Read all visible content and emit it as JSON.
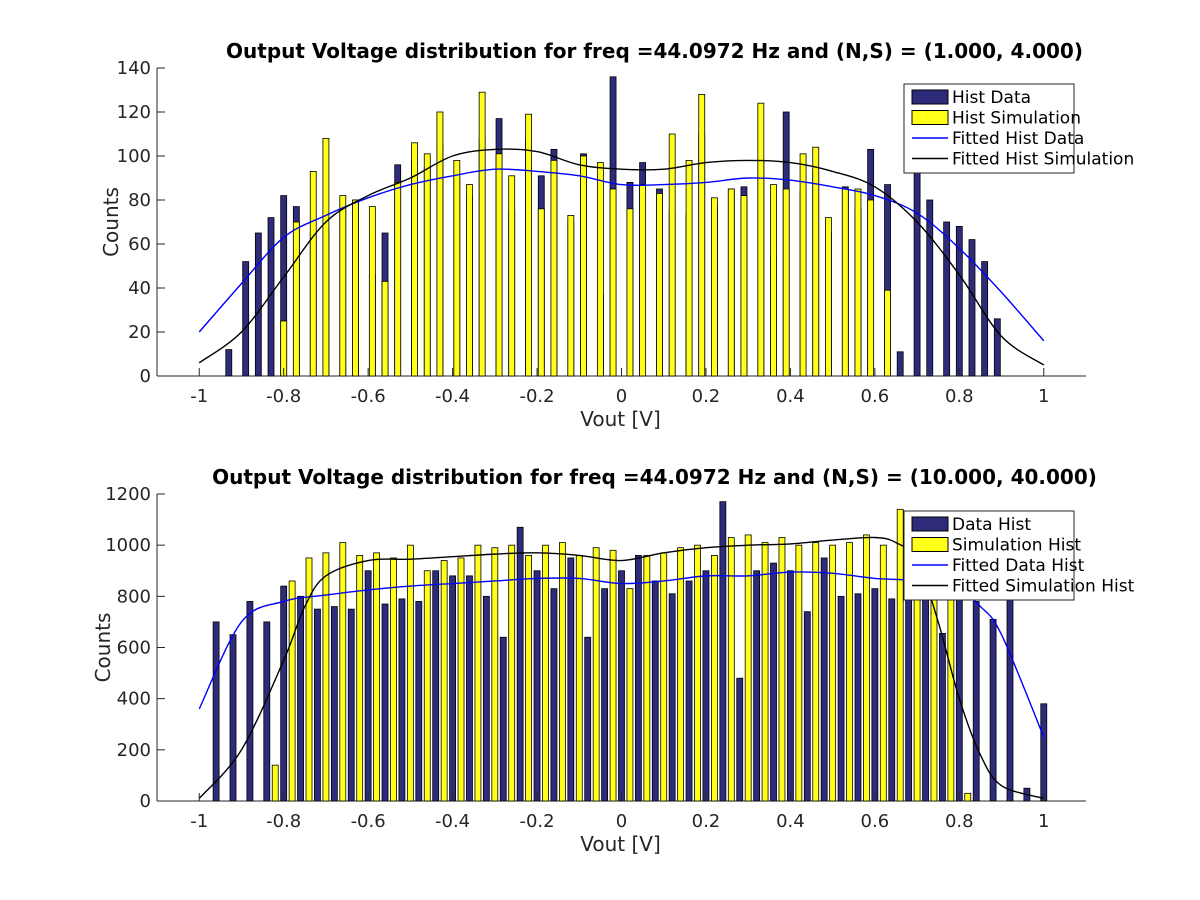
{
  "chart_data": [
    {
      "type": "bar",
      "title": "Output Voltage distribution for freq =44.0972 Hz and (N,S) = (1.000, 4.000)",
      "xlabel": "Vout [V]",
      "ylabel": "Counts",
      "xlim": [
        -1.1,
        1.1
      ],
      "ylim": [
        0,
        140
      ],
      "xticks": [
        "-1",
        "-0.8",
        "-0.6",
        "-0.4",
        "-0.2",
        "0",
        "0.2",
        "0.4",
        "0.6",
        "0.8",
        "1"
      ],
      "yticks": [
        "0",
        "20",
        "40",
        "60",
        "80",
        "100",
        "120",
        "140"
      ],
      "legend_position": "top-right",
      "grid": false,
      "bar_series": [
        {
          "name": "Hist Data",
          "color": "#2e2c7a",
          "x": [
            -0.93,
            -0.89,
            -0.86,
            -0.83,
            -0.8,
            -0.77,
            -0.73,
            -0.7,
            -0.66,
            -0.63,
            -0.59,
            -0.56,
            -0.53,
            -0.49,
            -0.46,
            -0.43,
            -0.39,
            -0.36,
            -0.33,
            -0.29,
            -0.26,
            -0.22,
            -0.19,
            -0.16,
            -0.12,
            -0.09,
            -0.05,
            -0.02,
            0.02,
            0.05,
            0.09,
            0.12,
            0.16,
            0.19,
            0.22,
            0.26,
            0.29,
            0.33,
            0.36,
            0.39,
            0.43,
            0.46,
            0.49,
            0.53,
            0.56,
            0.59,
            0.63,
            0.66,
            0.7,
            0.73,
            0.77,
            0.8,
            0.83,
            0.86,
            0.89,
            0.93
          ],
          "values": [
            12,
            52,
            65,
            72,
            82,
            77,
            65,
            67,
            77,
            80,
            46,
            65,
            96,
            98,
            95,
            105,
            90,
            82,
            108,
            117,
            75,
            107,
            91,
            103,
            70,
            101,
            37,
            136,
            88,
            97,
            85,
            75,
            74,
            110,
            77,
            85,
            86,
            98,
            55,
            120,
            84,
            93,
            65,
            86,
            76,
            103,
            87,
            11,
            93,
            80,
            70,
            68,
            62,
            52,
            26,
            0
          ]
        },
        {
          "name": "Hist Simulation",
          "color": "#ffff1a",
          "x": [
            -0.8,
            -0.77,
            -0.73,
            -0.7,
            -0.66,
            -0.63,
            -0.59,
            -0.56,
            -0.53,
            -0.49,
            -0.46,
            -0.43,
            -0.39,
            -0.36,
            -0.33,
            -0.29,
            -0.26,
            -0.22,
            -0.19,
            -0.16,
            -0.12,
            -0.09,
            -0.05,
            -0.02,
            0.02,
            0.05,
            0.09,
            0.12,
            0.16,
            0.19,
            0.22,
            0.26,
            0.29,
            0.33,
            0.36,
            0.39,
            0.43,
            0.46,
            0.49,
            0.53,
            0.56,
            0.59,
            0.63,
            0.66,
            0.7,
            0.73,
            0.77,
            0.8
          ],
          "values": [
            25,
            70,
            93,
            108,
            82,
            80,
            77,
            43,
            88,
            106,
            101,
            120,
            98,
            87,
            129,
            101,
            91,
            119,
            76,
            98,
            73,
            100,
            97,
            85,
            76,
            87,
            83,
            110,
            98,
            128,
            81,
            85,
            82,
            124,
            87,
            85,
            101,
            104,
            72,
            85,
            85,
            80,
            39,
            0,
            0,
            0,
            0,
            0
          ]
        }
      ],
      "line_series": [
        {
          "name": "Fitted Hist Data",
          "color": "#0000ff",
          "x": [
            -1.0,
            -0.9,
            -0.8,
            -0.7,
            -0.6,
            -0.5,
            -0.4,
            -0.3,
            -0.2,
            -0.1,
            0.0,
            0.1,
            0.2,
            0.3,
            0.4,
            0.5,
            0.6,
            0.7,
            0.8,
            0.9,
            1.0
          ],
          "values": [
            20,
            42,
            63,
            73,
            81,
            87,
            91,
            94,
            93,
            91,
            87,
            87,
            88,
            90,
            89,
            86,
            82,
            74,
            58,
            38,
            16
          ]
        },
        {
          "name": "Fitted Hist Simulation",
          "color": "#000000",
          "x": [
            -1.0,
            -0.9,
            -0.8,
            -0.7,
            -0.6,
            -0.5,
            -0.4,
            -0.3,
            -0.2,
            -0.1,
            0.0,
            0.1,
            0.2,
            0.3,
            0.4,
            0.5,
            0.6,
            0.7,
            0.8,
            0.9,
            1.0
          ],
          "values": [
            6,
            20,
            45,
            70,
            82,
            90,
            100,
            103,
            102,
            96,
            94,
            94,
            97,
            98,
            97,
            93,
            86,
            70,
            46,
            18,
            5
          ]
        }
      ]
    },
    {
      "type": "bar",
      "title": "Output Voltage distribution for freq =44.0972 Hz and (N,S) = (10.000, 40.000)",
      "xlabel": "Vout [V]",
      "ylabel": "Counts",
      "xlim": [
        -1.1,
        1.1
      ],
      "ylim": [
        0,
        1200
      ],
      "xticks": [
        "-1",
        "-0.8",
        "-0.6",
        "-0.4",
        "-0.2",
        "0",
        "0.2",
        "0.4",
        "0.6",
        "0.8",
        "1"
      ],
      "yticks": [
        "0",
        "200",
        "400",
        "600",
        "800",
        "1000",
        "1200"
      ],
      "legend_position": "top-right",
      "grid": false,
      "bar_series": [
        {
          "name": "Data Hist",
          "color": "#2e2c7a",
          "x": [
            -0.96,
            -0.92,
            -0.88,
            -0.84,
            -0.8,
            -0.76,
            -0.72,
            -0.68,
            -0.64,
            -0.6,
            -0.56,
            -0.52,
            -0.48,
            -0.44,
            -0.4,
            -0.36,
            -0.32,
            -0.28,
            -0.24,
            -0.2,
            -0.16,
            -0.12,
            -0.08,
            -0.04,
            0.0,
            0.04,
            0.08,
            0.12,
            0.16,
            0.2,
            0.24,
            0.28,
            0.32,
            0.36,
            0.4,
            0.44,
            0.48,
            0.52,
            0.56,
            0.6,
            0.64,
            0.68,
            0.72,
            0.76,
            0.8,
            0.84,
            0.88,
            0.92,
            0.96,
            1.0
          ],
          "values": [
            700,
            650,
            780,
            700,
            840,
            800,
            750,
            760,
            750,
            900,
            770,
            790,
            780,
            900,
            880,
            880,
            800,
            640,
            1070,
            900,
            830,
            950,
            640,
            830,
            900,
            960,
            860,
            810,
            860,
            900,
            1170,
            480,
            900,
            930,
            900,
            740,
            950,
            800,
            810,
            830,
            790,
            850,
            850,
            655,
            810,
            780,
            710,
            810,
            50,
            380
          ]
        },
        {
          "name": "Simulation Hist",
          "color": "#ffff1a",
          "x": [
            -0.82,
            -0.78,
            -0.74,
            -0.7,
            -0.66,
            -0.62,
            -0.58,
            -0.54,
            -0.5,
            -0.46,
            -0.42,
            -0.38,
            -0.34,
            -0.3,
            -0.26,
            -0.22,
            -0.18,
            -0.14,
            -0.1,
            -0.06,
            -0.02,
            0.02,
            0.06,
            0.1,
            0.14,
            0.18,
            0.22,
            0.26,
            0.3,
            0.34,
            0.38,
            0.42,
            0.46,
            0.5,
            0.54,
            0.58,
            0.62,
            0.66,
            0.7,
            0.74,
            0.78,
            0.82
          ],
          "values": [
            140,
            860,
            950,
            970,
            1010,
            960,
            970,
            950,
            1000,
            900,
            940,
            950,
            1000,
            990,
            1000,
            960,
            1000,
            1010,
            960,
            990,
            980,
            830,
            960,
            970,
            990,
            1000,
            960,
            1030,
            1040,
            1010,
            1030,
            1000,
            1010,
            1000,
            1010,
            1040,
            1000,
            1140,
            1130,
            1100,
            980,
            30
          ]
        }
      ],
      "line_series": [
        {
          "name": "Fitted Data Hist",
          "color": "#0000ff",
          "x": [
            -1.0,
            -0.9,
            -0.8,
            -0.7,
            -0.6,
            -0.5,
            -0.4,
            -0.3,
            -0.2,
            -0.1,
            0.0,
            0.1,
            0.2,
            0.3,
            0.4,
            0.5,
            0.6,
            0.7,
            0.8,
            0.85,
            0.9,
            1.0
          ],
          "values": [
            360,
            700,
            780,
            805,
            825,
            840,
            850,
            860,
            870,
            870,
            850,
            860,
            880,
            880,
            895,
            890,
            870,
            860,
            820,
            760,
            650,
            250
          ]
        },
        {
          "name": "Fitted Simulation Hist",
          "color": "#000000",
          "x": [
            -1.0,
            -0.9,
            -0.8,
            -0.75,
            -0.7,
            -0.6,
            -0.5,
            -0.4,
            -0.3,
            -0.2,
            -0.1,
            0.0,
            0.1,
            0.2,
            0.3,
            0.4,
            0.5,
            0.6,
            0.65,
            0.7,
            0.75,
            0.8,
            0.85,
            0.9,
            1.0
          ],
          "values": [
            10,
            200,
            550,
            760,
            880,
            940,
            945,
            955,
            965,
            970,
            960,
            940,
            970,
            990,
            1000,
            1005,
            1020,
            1030,
            1010,
            940,
            700,
            400,
            180,
            60,
            10
          ]
        }
      ]
    }
  ]
}
